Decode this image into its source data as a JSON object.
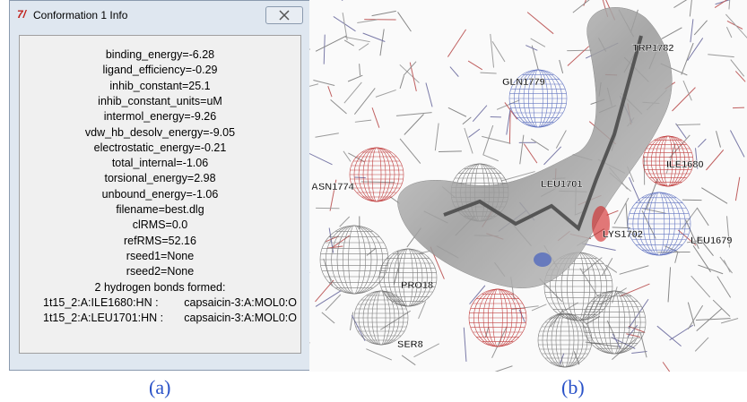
{
  "dialog": {
    "title": "Conformation 1 Info",
    "lines": [
      "binding_energy=-6.28",
      "ligand_efficiency=-0.29",
      "inhib_constant=25.1",
      "inhib_constant_units=uM",
      "intermol_energy=-9.26",
      "vdw_hb_desolv_energy=-9.05",
      "electrostatic_energy=-0.21",
      "total_internal=-1.06",
      "torsional_energy=2.98",
      "unbound_energy=-1.06",
      "filename=best.dlg",
      "clRMS=0.0",
      "refRMS=52.16",
      "rseed1=None",
      "rseed2=None",
      "2 hydrogen bonds formed:"
    ],
    "hbonds": [
      {
        "left": "1t15_2:A:ILE1680:HN :",
        "right": "capsaicin-3:A:MOL0:O"
      },
      {
        "left": "1t15_2:A:LEU1701:HN :",
        "right": "capsaicin-3:A:MOL0:O"
      }
    ]
  },
  "structure": {
    "labels": [
      "TRP1782",
      "GLN1779",
      "ILE1680",
      "ASN1774",
      "LEU1701",
      "LYS1702",
      "LEU1679",
      "PRO18",
      "SER8"
    ]
  },
  "captions": [
    "(a)",
    "(b)"
  ]
}
